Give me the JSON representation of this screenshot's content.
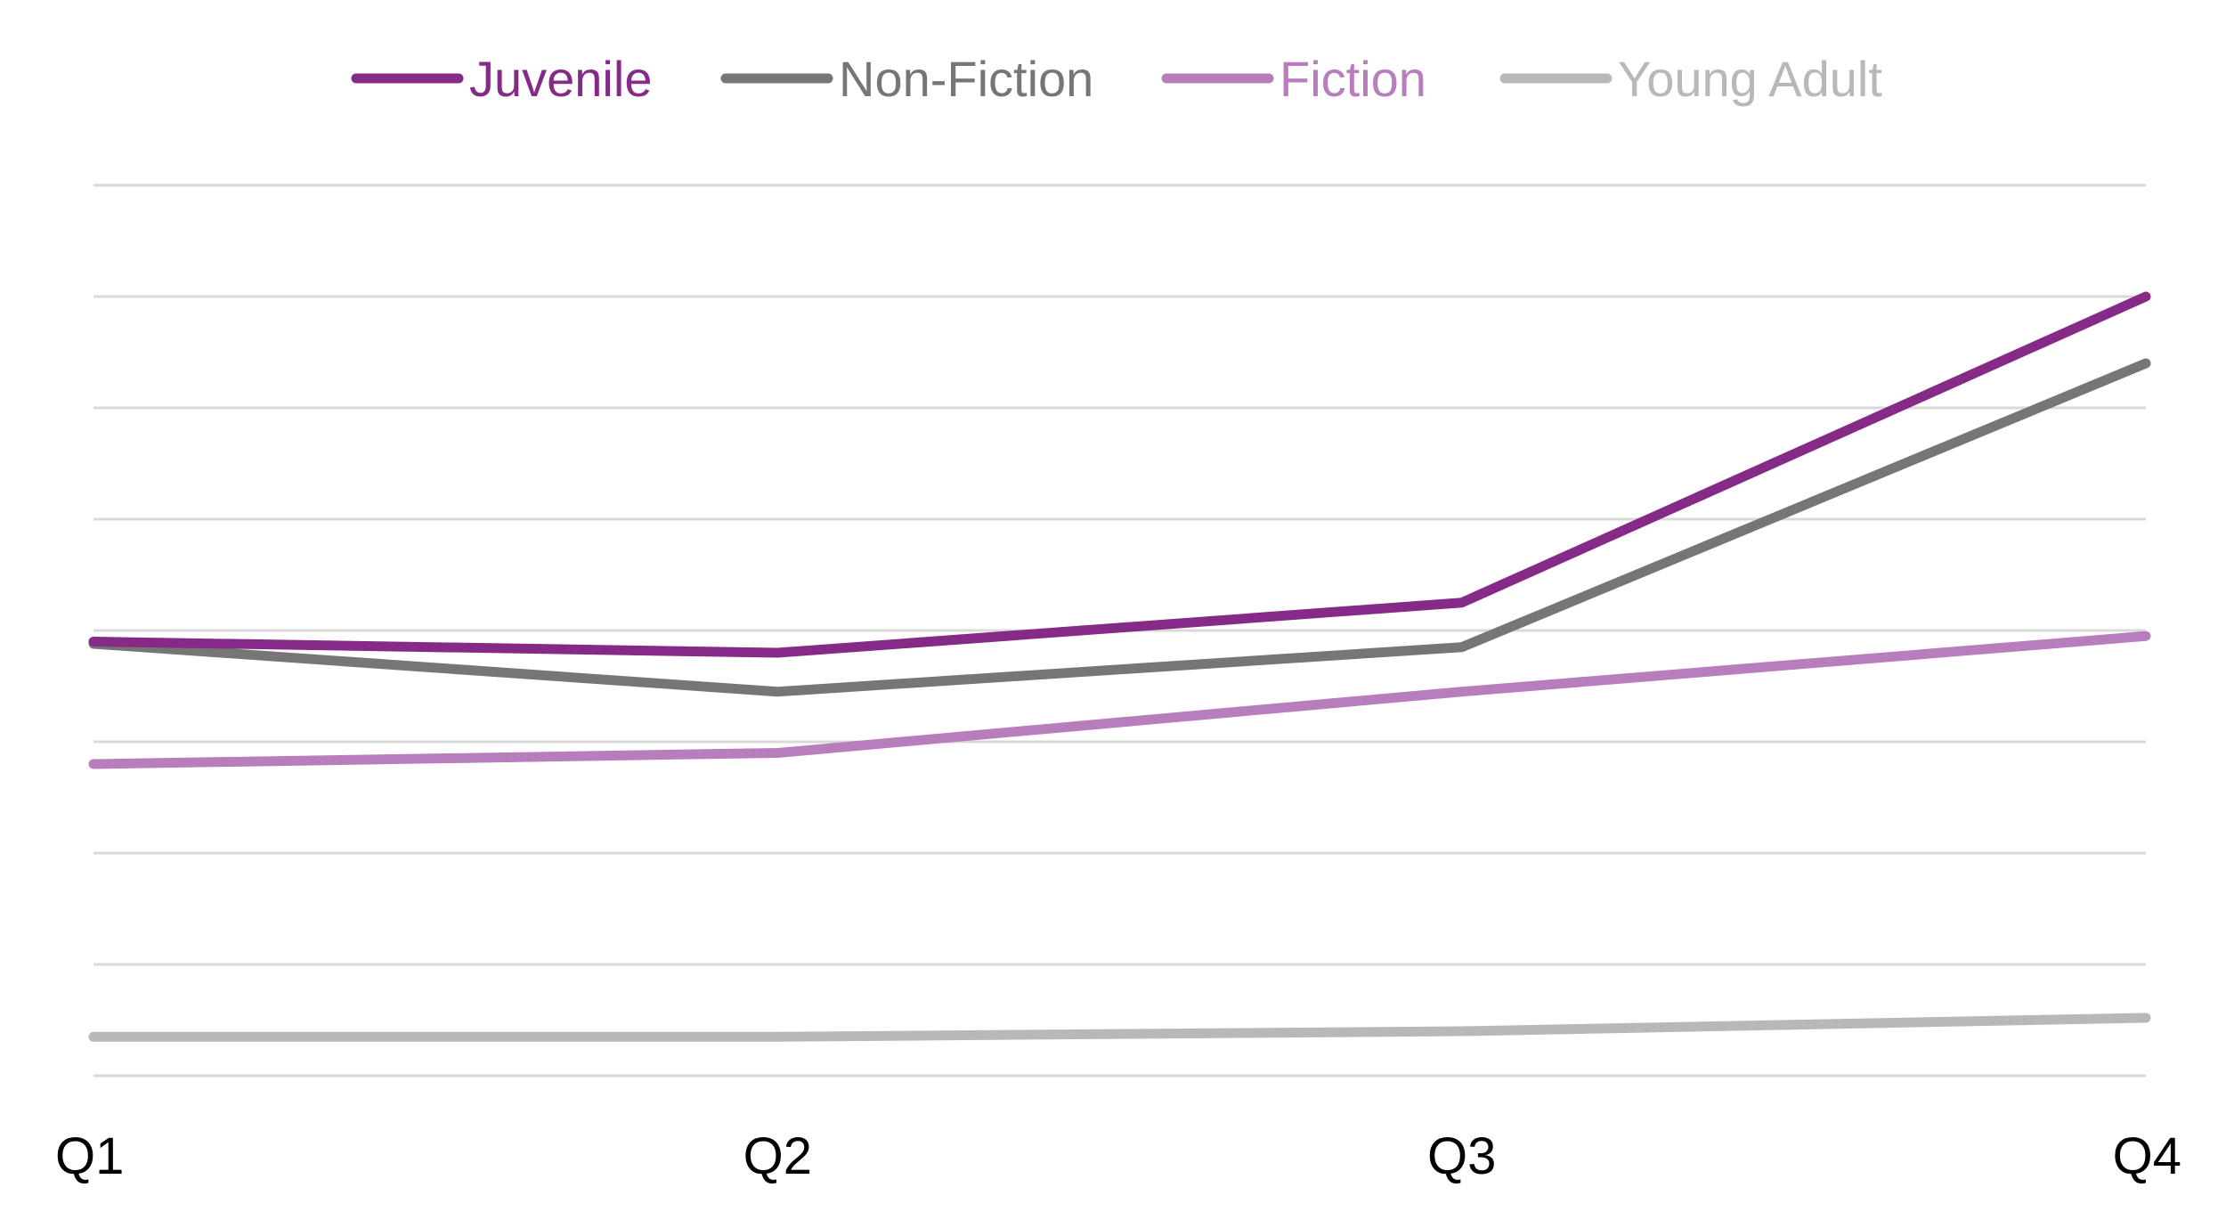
{
  "chart_data": {
    "type": "line",
    "categories": [
      "Q1",
      "Q2",
      "Q3",
      "Q4"
    ],
    "series": [
      {
        "name": "Juvenile",
        "values": [
          3.9,
          3.8,
          4.25,
          7.0
        ],
        "color": "#852a87"
      },
      {
        "name": "Non-Fiction",
        "values": [
          3.88,
          3.45,
          3.85,
          6.4
        ],
        "color": "#767676"
      },
      {
        "name": "Fiction",
        "values": [
          2.8,
          2.9,
          3.45,
          3.95
        ],
        "color": "#b87dbd"
      },
      {
        "name": "Young Adult",
        "values": [
          0.35,
          0.35,
          0.4,
          0.52
        ],
        "color": "#b8b8b8"
      }
    ],
    "ylim": [
      0,
      8
    ],
    "grid": true,
    "legend_position": "top",
    "title": "",
    "xlabel": "",
    "ylabel": ""
  }
}
